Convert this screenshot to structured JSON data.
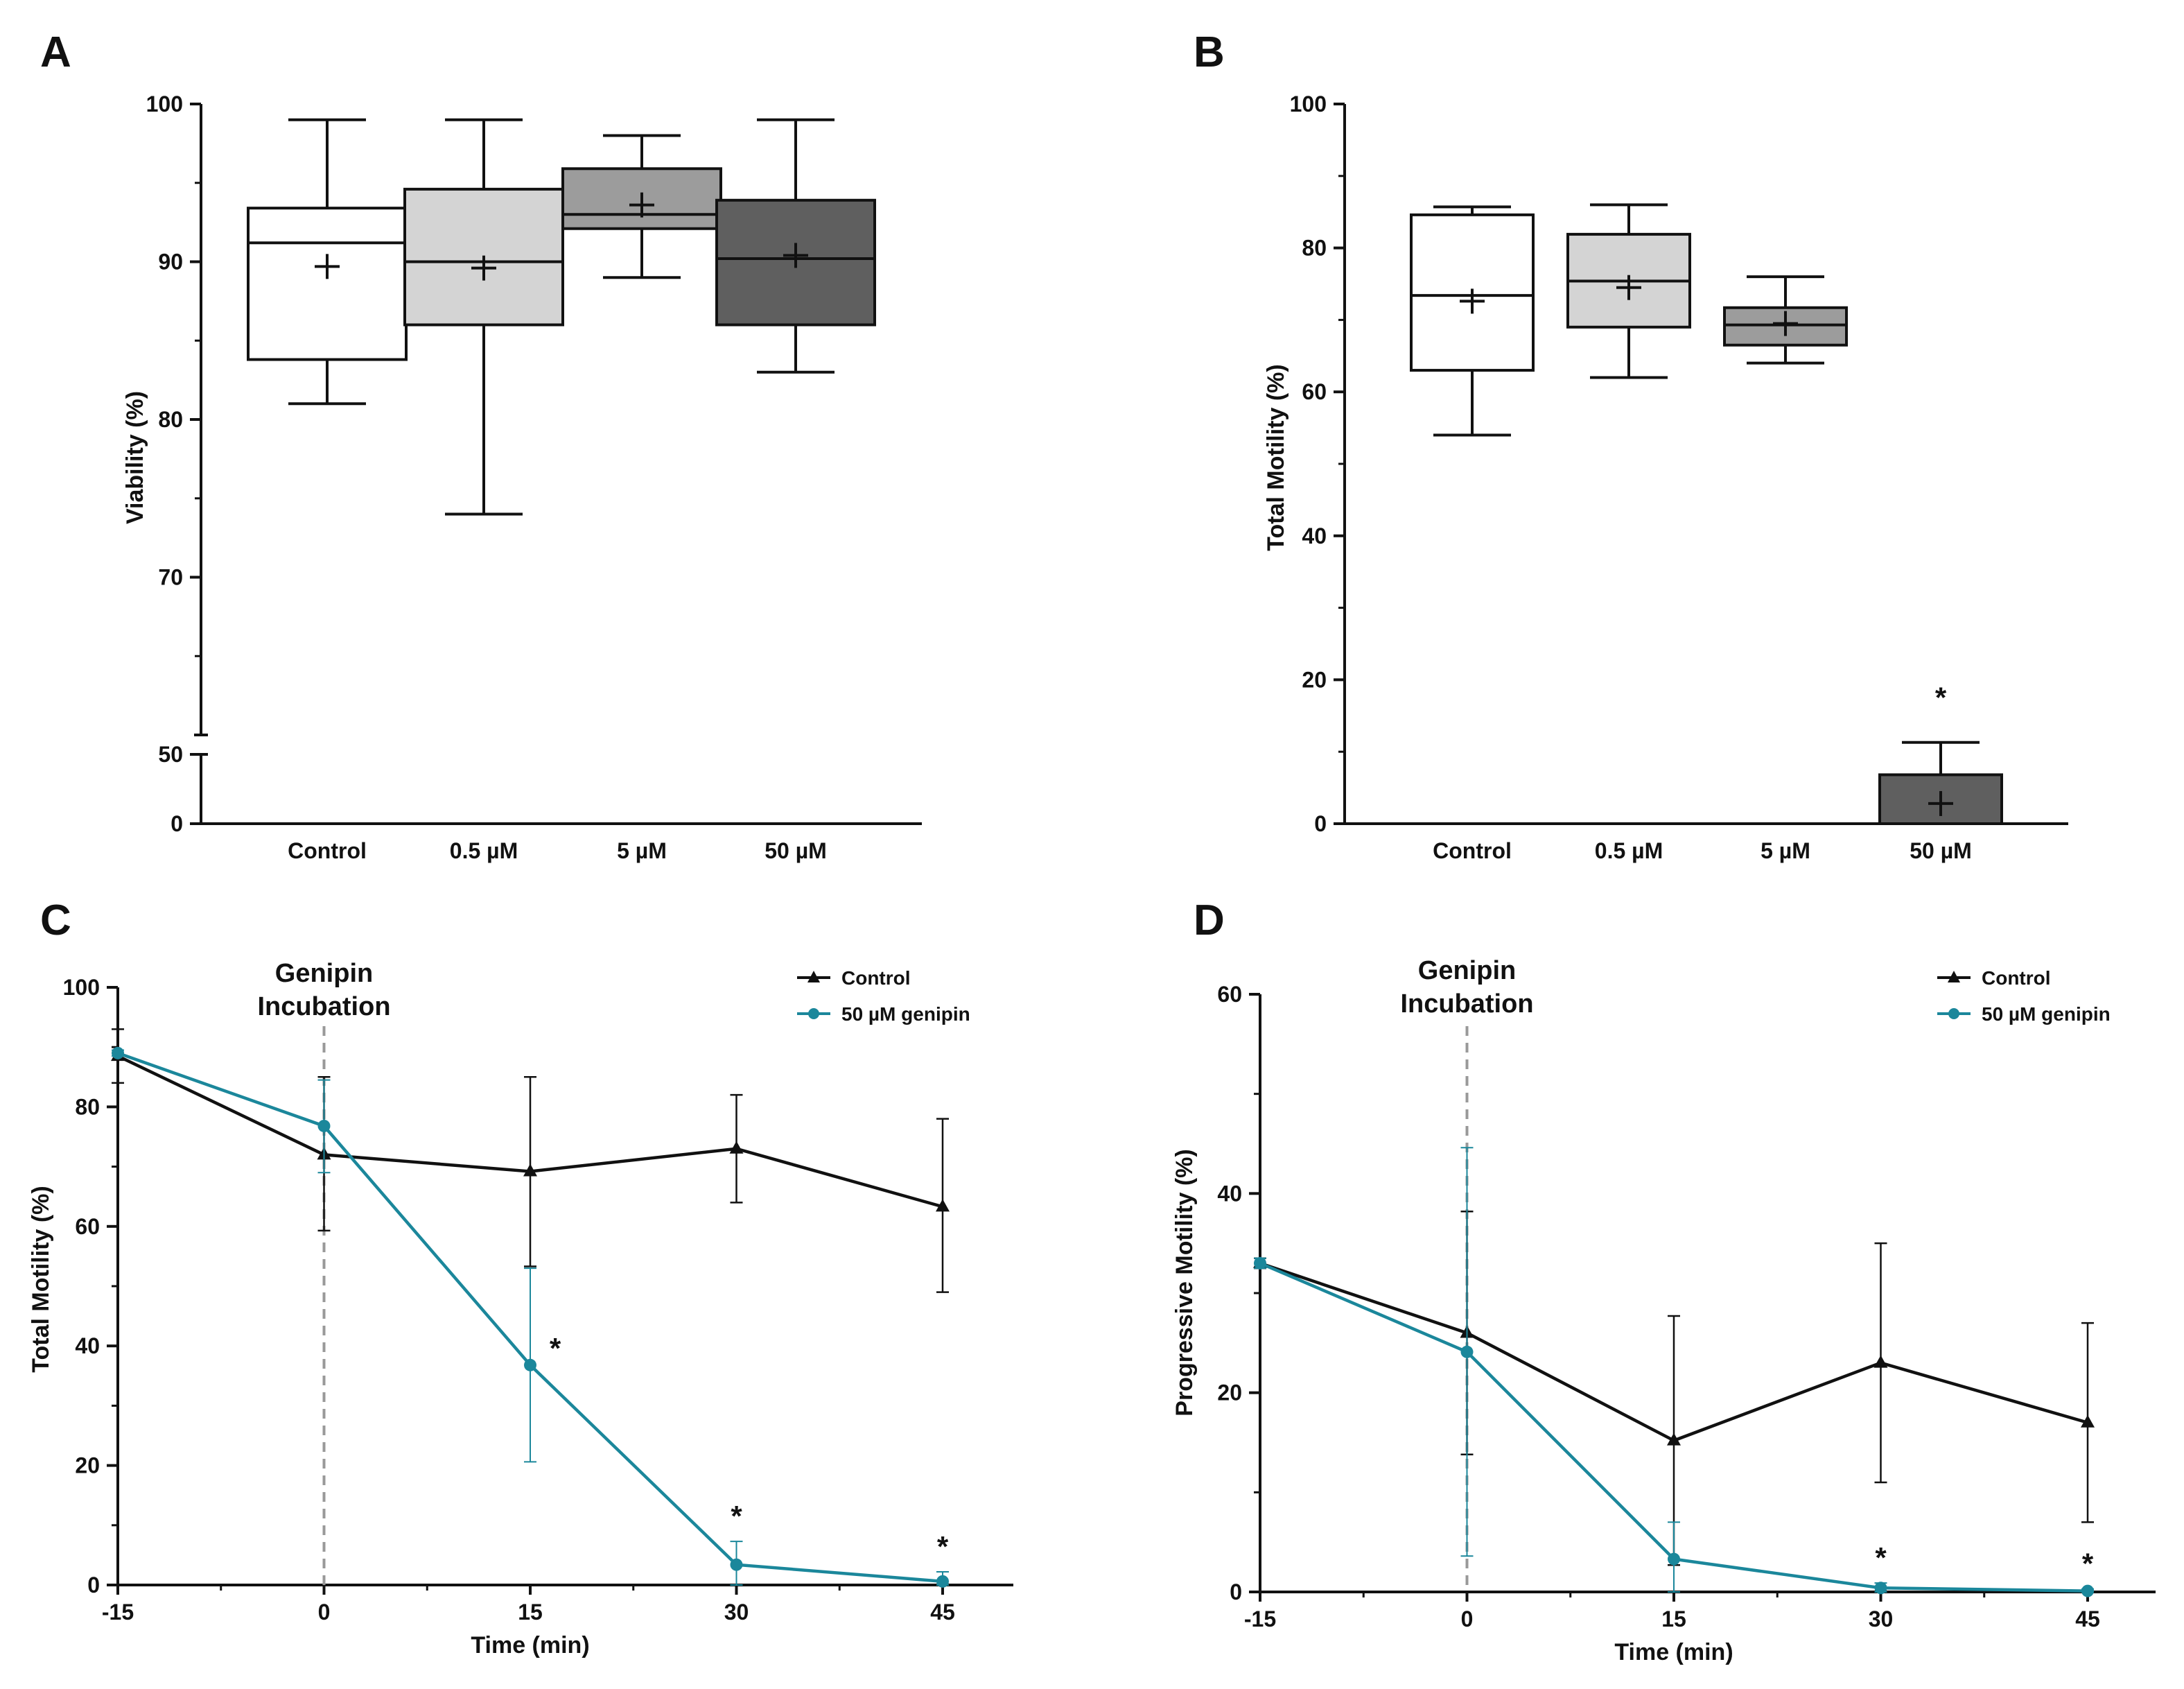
{
  "chart_data": [
    {
      "panel": "A",
      "type": "box",
      "xlabel": "",
      "ylabel": "Viability (%)",
      "categories": [
        "Control",
        "0.5 µM",
        "5 µM",
        "50 µM"
      ],
      "yticks": [
        "0",
        "50",
        "70",
        "80",
        "90",
        "100"
      ],
      "ylim": [
        0,
        100
      ],
      "axis_break": [
        50,
        60
      ],
      "colors": [
        "#ffffff",
        "#d4d4d4",
        "#9c9c9c",
        "#5f5f5f"
      ],
      "boxes": [
        {
          "min": 81,
          "q1": 83.8,
          "median": 91.2,
          "q3": 93.4,
          "max": 99,
          "mean": 89.7
        },
        {
          "min": 74,
          "q1": 86,
          "median": 90,
          "q3": 94.6,
          "max": 99,
          "mean": 89.6
        },
        {
          "min": 89,
          "q1": 92.1,
          "median": 93,
          "q3": 95.9,
          "max": 98,
          "mean": 93.6
        },
        {
          "min": 83,
          "q1": 86,
          "median": 90.2,
          "q3": 93.9,
          "max": 99,
          "mean": 90.4
        }
      ]
    },
    {
      "panel": "B",
      "type": "box",
      "xlabel": "",
      "ylabel": "Total  Motility (%)",
      "categories": [
        "Control",
        "0.5 µM",
        "5 µM",
        "50 µM"
      ],
      "yticks": [
        "0",
        "20",
        "40",
        "60",
        "80",
        "100"
      ],
      "ylim": [
        0,
        100
      ],
      "colors": [
        "#ffffff",
        "#d4d4d4",
        "#9c9c9c",
        "#5f5f5f"
      ],
      "boxes": [
        {
          "min": 54,
          "q1": 63,
          "median": 73.4,
          "q3": 84.6,
          "max": 85.7,
          "mean": 72.6
        },
        {
          "min": 62,
          "q1": 69,
          "median": 75.4,
          "q3": 81.9,
          "max": 86,
          "mean": 74.5
        },
        {
          "min": 64,
          "q1": 66.5,
          "median": 69.3,
          "q3": 71.7,
          "max": 76,
          "mean": 69.5
        },
        {
          "min": 0,
          "q1": 0,
          "median": 0,
          "q3": 6.8,
          "max": 11.3,
          "mean": 2.8
        }
      ],
      "annotations": [
        {
          "category": "50 µM",
          "text": "*"
        }
      ]
    },
    {
      "panel": "C",
      "type": "line",
      "xlabel": "Time (min)",
      "ylabel": "Total Motility (%)",
      "x": [
        -15,
        0,
        15,
        30,
        45
      ],
      "xticks": [
        "-15",
        "0",
        "15",
        "30",
        "45"
      ],
      "yticks": [
        "0",
        "20",
        "40",
        "60",
        "80",
        "100"
      ],
      "ylim": [
        0,
        100
      ],
      "vline_x": 0,
      "vline_label": [
        "Genipin",
        "Incubation"
      ],
      "series": [
        {
          "name": "Control",
          "color": "#111111",
          "marker": "triangle",
          "values": [
            88.5,
            72,
            69.2,
            73,
            63.3
          ],
          "err_upper": [
            93,
            85,
            85,
            82,
            78
          ],
          "err_lower": [
            84,
            59.3,
            53.3,
            64,
            49
          ]
        },
        {
          "name": "50 µM genipin",
          "color": "#1b879b",
          "marker": "circle",
          "values": [
            89,
            76.8,
            36.8,
            3.4,
            0.6
          ],
          "err_upper": [
            89.5,
            84.5,
            53,
            7.3,
            2.2
          ],
          "err_lower": [
            88.5,
            69,
            20.6,
            0,
            0
          ]
        }
      ],
      "annotations": [
        {
          "x": 15,
          "text": "*"
        },
        {
          "x": 30,
          "text": "*"
        },
        {
          "x": 45,
          "text": "*"
        }
      ]
    },
    {
      "panel": "D",
      "type": "line",
      "xlabel": "Time (min)",
      "ylabel": "Progressive Motility (%)",
      "x": [
        -15,
        0,
        15,
        30,
        45
      ],
      "xticks": [
        "-15",
        "0",
        "15",
        "30",
        "45"
      ],
      "yticks": [
        "0",
        "20",
        "40",
        "60"
      ],
      "ylim": [
        0,
        60
      ],
      "vline_x": 0,
      "vline_label": [
        "Genipin",
        "Incubation"
      ],
      "series": [
        {
          "name": "Control",
          "color": "#111111",
          "marker": "triangle",
          "values": [
            33,
            26,
            15.2,
            23,
            17
          ],
          "err_upper": [
            33.5,
            38.2,
            27.7,
            35,
            27
          ],
          "err_lower": [
            32.5,
            13.8,
            2.7,
            11,
            7
          ]
        },
        {
          "name": "50 µM genipin",
          "color": "#1b879b",
          "marker": "circle",
          "values": [
            33,
            24.1,
            3.3,
            0.4,
            0.1
          ],
          "err_upper": [
            33.5,
            44.6,
            7,
            0.9,
            0.3
          ],
          "err_lower": [
            32.5,
            3.6,
            0,
            0,
            0
          ]
        }
      ],
      "annotations": [
        {
          "x": 30,
          "text": "*"
        },
        {
          "x": 45,
          "text": "*"
        }
      ]
    }
  ]
}
